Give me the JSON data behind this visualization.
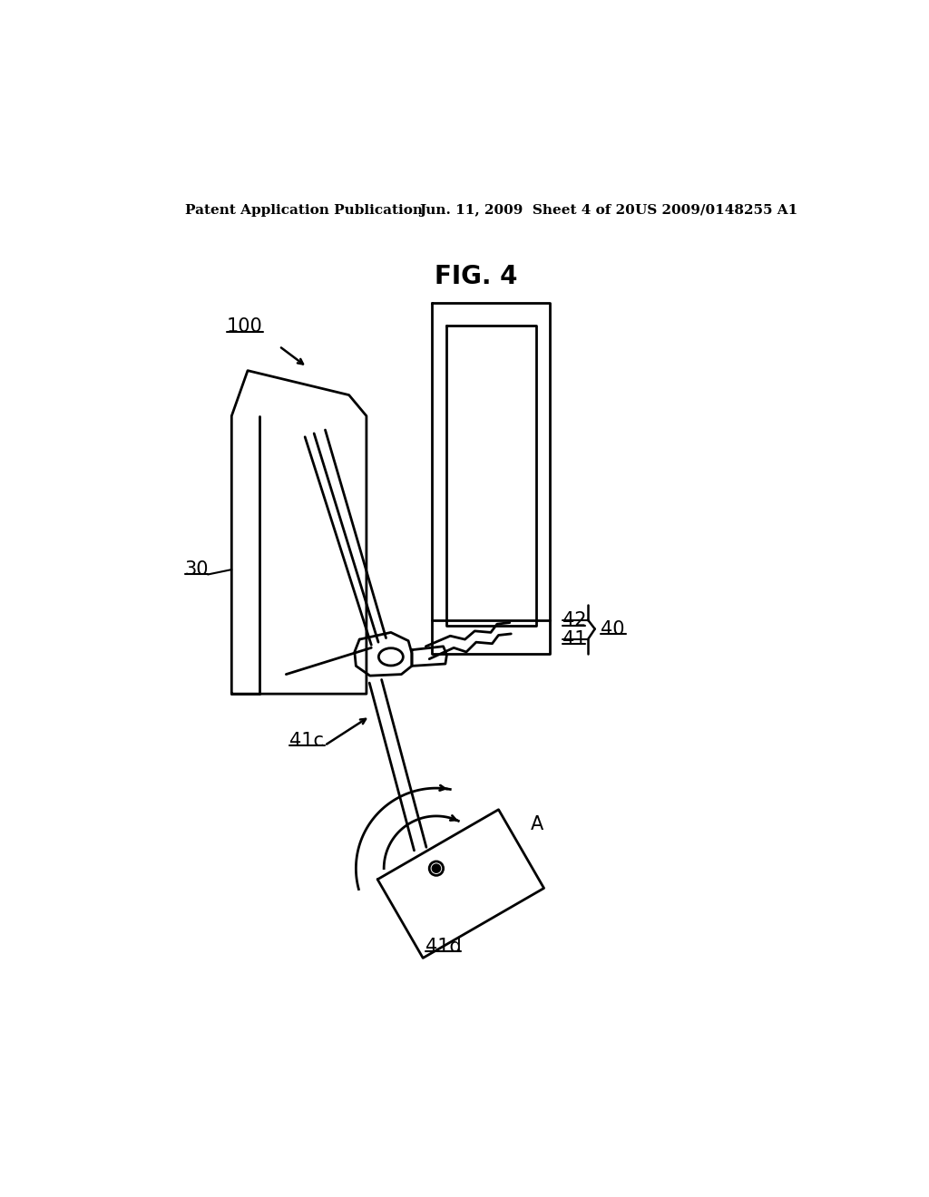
{
  "bg_color": "#ffffff",
  "line_color": "#000000",
  "header_left": "Patent Application Publication",
  "header_mid": "Jun. 11, 2009  Sheet 4 of 20",
  "header_right": "US 2009/0148255 A1",
  "title": "FIG. 4"
}
